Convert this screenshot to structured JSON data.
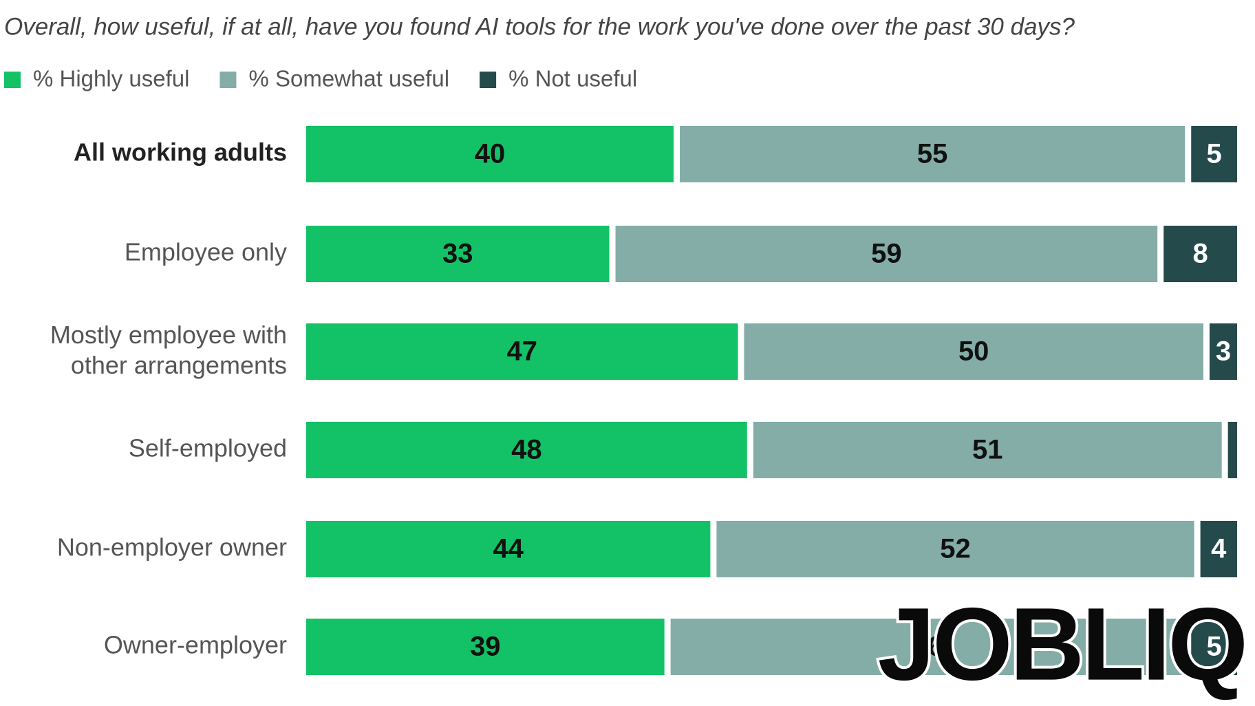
{
  "chart_data": {
    "type": "stacked-bar-horizontal",
    "title": "Overall, how useful, if at all, have you found AI tools for the work you've done over the past 30 days?",
    "categories": [
      "All working adults",
      "Employee only",
      "Mostly employee with other arrangements",
      "Self-employed",
      "Non-employer owner",
      "Owner-employer"
    ],
    "series": [
      {
        "name": "% Highly useful",
        "color": "#13c266",
        "values": [
          40,
          33,
          47,
          48,
          44,
          39
        ]
      },
      {
        "name": "% Somewhat useful",
        "color": "#84ada8",
        "values": [
          55,
          59,
          50,
          51,
          52,
          56
        ]
      },
      {
        "name": "% Not useful",
        "color": "#244a4c",
        "values": [
          5,
          8,
          3,
          1,
          4,
          5
        ]
      }
    ],
    "watermark": "JOBLIQ"
  }
}
